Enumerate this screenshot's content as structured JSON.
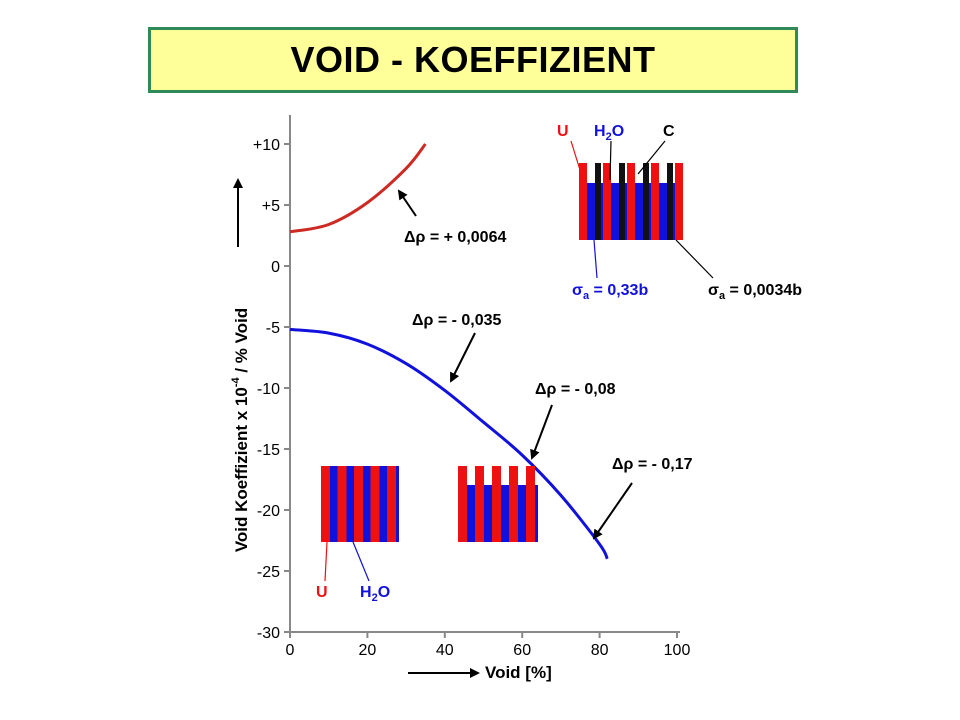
{
  "title": "VOID - KOEFFIZIENT",
  "colors": {
    "red": "#ee1111",
    "blue": "#1111dd",
    "black": "#111111",
    "accent_dark_red": "#cc2a22",
    "title_bg": "#ffff99",
    "title_border": "#2e8b57"
  },
  "chart_data": {
    "type": "line",
    "xlabel": "Void [%]",
    "ylabel": "Void Koeffizient x 10^-4 / % Void",
    "ylabel_main": "Void Koeffizient x 10",
    "ylabel_exp": "-4",
    "ylabel_tail": " / % Void",
    "xlim": [
      0,
      100
    ],
    "ylim": [
      -30,
      10
    ],
    "x_ticks": [
      "0",
      "20",
      "40",
      "60",
      "80",
      "100"
    ],
    "x_tick_values": [
      0,
      20,
      40,
      60,
      80,
      100
    ],
    "y_ticks": [
      "+10",
      "+5",
      "0",
      "-5",
      "-10",
      "-15",
      "-20",
      "-25",
      "-30"
    ],
    "y_tick_values": [
      10,
      5,
      0,
      -5,
      -10,
      -15,
      -20,
      -25,
      -30
    ],
    "series": [
      {
        "color": "red",
        "x": [
          0,
          10,
          20,
          30,
          35
        ],
        "y": [
          2.8,
          3.4,
          5.2,
          8.0,
          10.0
        ]
      },
      {
        "color": "blue",
        "x": [
          0,
          10,
          20,
          30,
          40,
          50,
          60,
          70,
          80,
          82
        ],
        "y": [
          -5.2,
          -5.5,
          -6.4,
          -8.0,
          -10.2,
          -12.8,
          -15.5,
          -18.8,
          -22.8,
          -24.0
        ]
      }
    ],
    "annotations": [
      {
        "text": "Δρ = + 0,0064",
        "x": 30,
        "y": 6.5
      },
      {
        "text": "Δρ = - 0,035",
        "x": 42,
        "y": -9.5
      },
      {
        "text": "Δρ = - 0,08",
        "x": 63,
        "y": -15.5
      },
      {
        "text": "Δρ = - 0,17",
        "x": 80,
        "y": -22.5
      }
    ]
  },
  "inset_top": {
    "labels": {
      "u": "U",
      "h2o_main": "H",
      "h2o_sub": "2",
      "h2o_end": "O",
      "c": "C"
    },
    "sigma_left": {
      "sym": "σ",
      "sub": "a",
      "text": " = 0,33b"
    },
    "sigma_right": {
      "sym": "σ",
      "sub": "a",
      "text": " = 0,0034b"
    }
  },
  "inset_bottom": {
    "labels": {
      "u": "U",
      "h2o_main": "H",
      "h2o_sub": "2",
      "h2o_end": "O"
    }
  }
}
